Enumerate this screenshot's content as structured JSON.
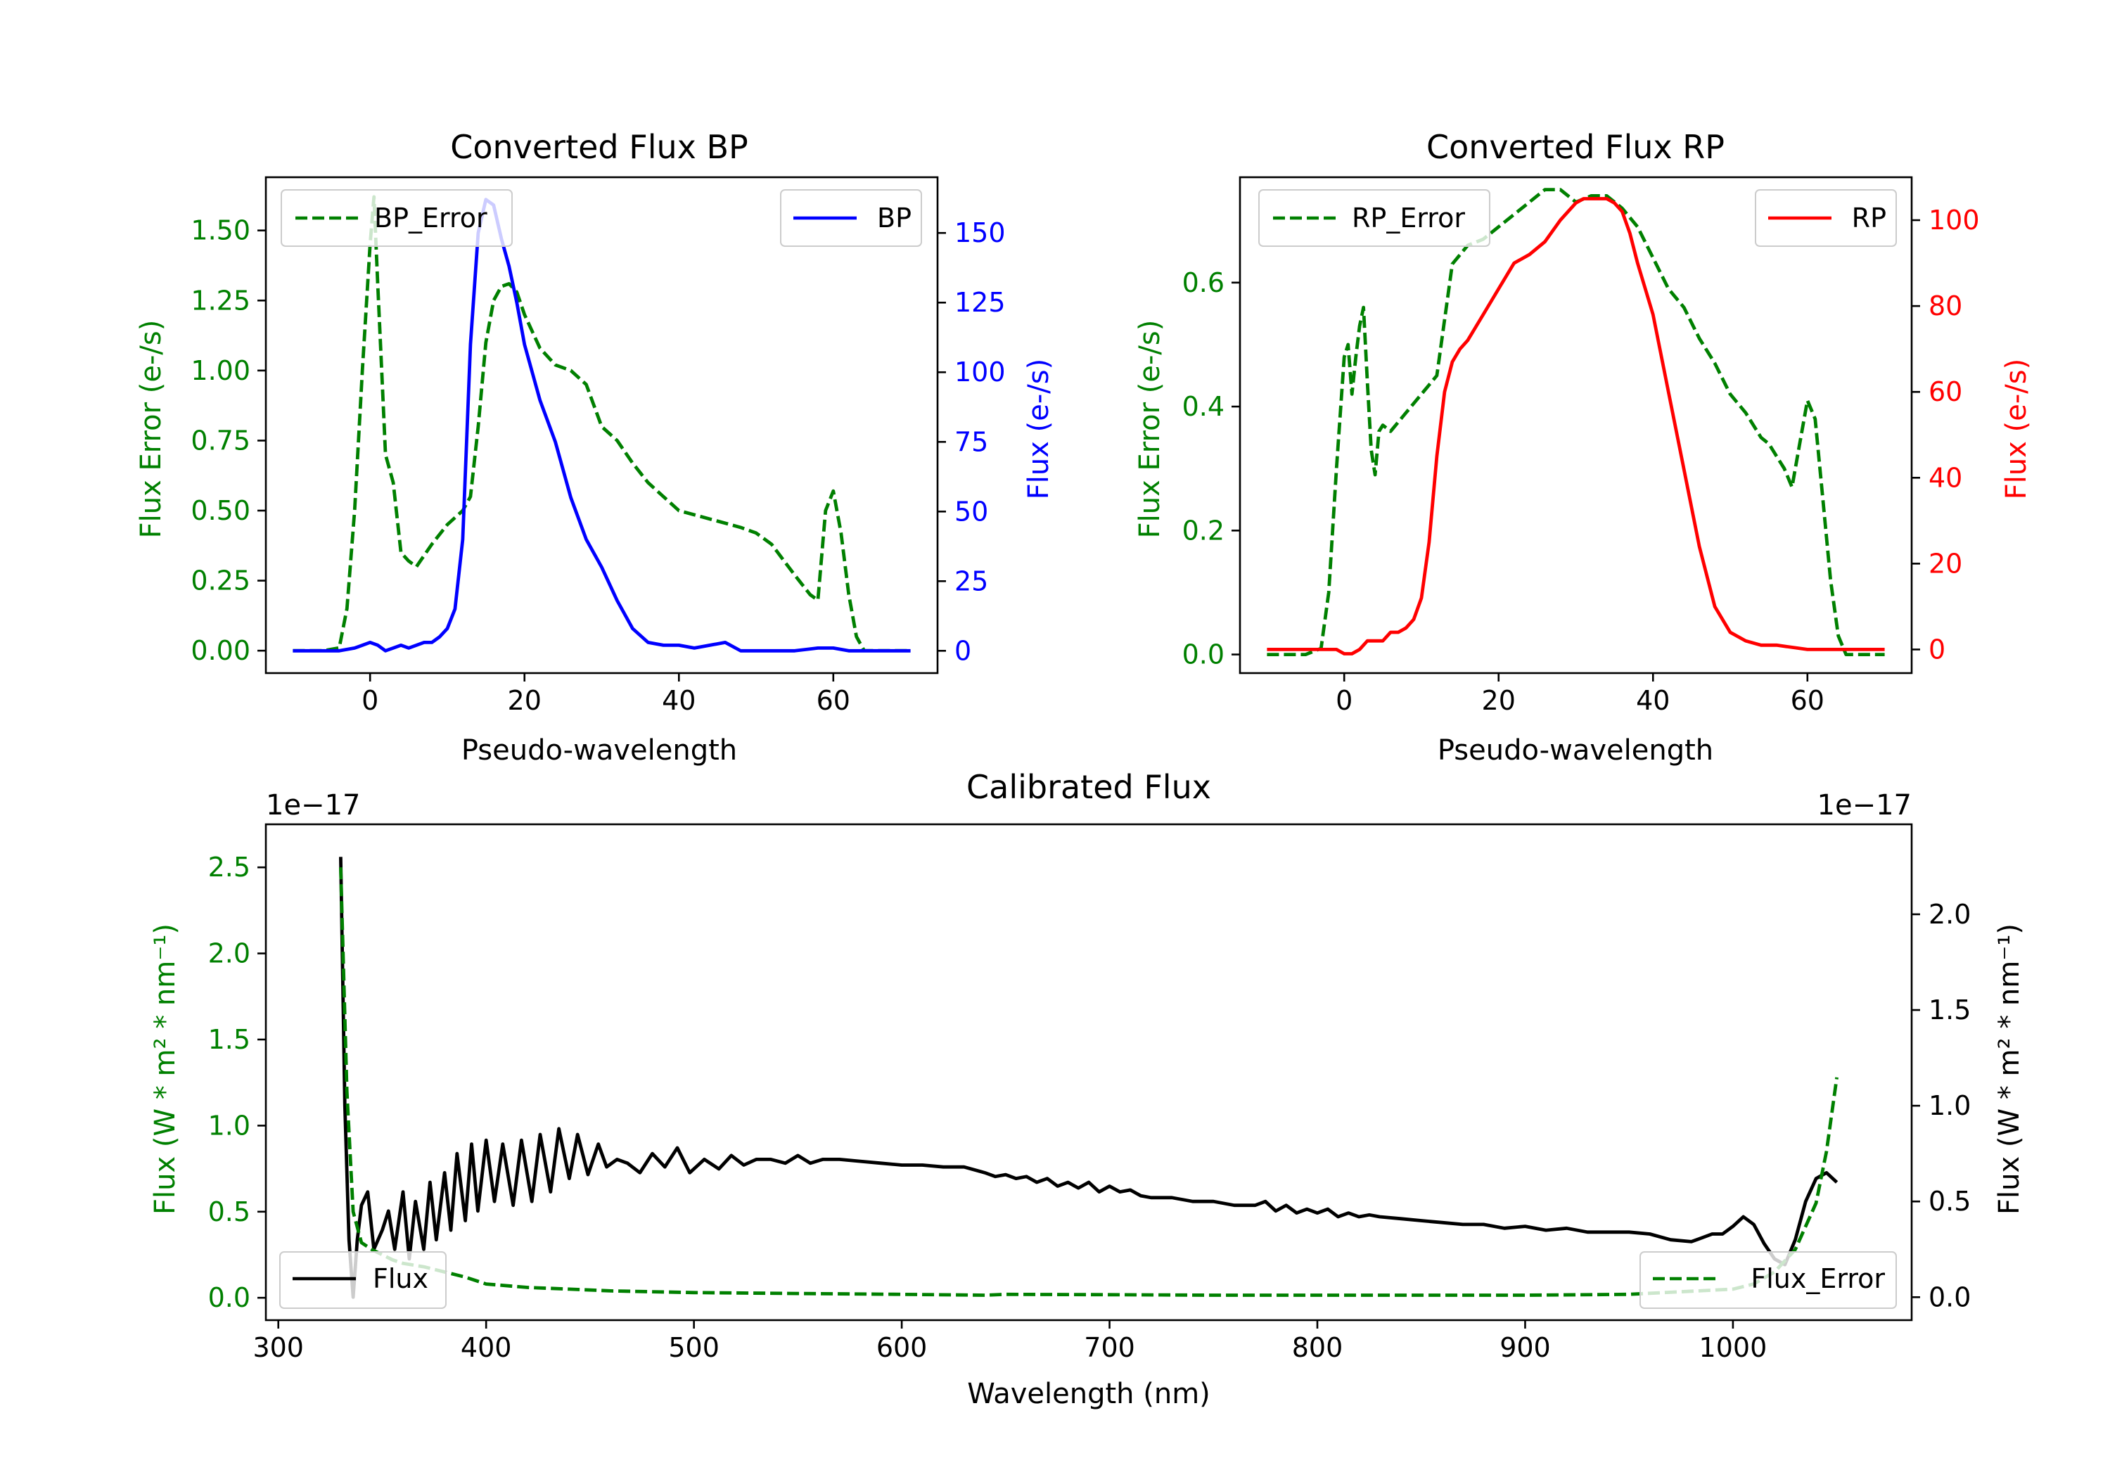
{
  "chart_data": [
    {
      "id": "bp",
      "type": "line",
      "title": "Converted Flux BP",
      "xlabel": "Pseudo-wavelength",
      "ylabel_left": "Flux Error (e-/s)",
      "ylabel_right": "Flux (e-/s)",
      "xlim": [
        -13.5,
        73.5
      ],
      "ylim_left": [
        -0.08,
        1.69
      ],
      "ylim_right": [
        -8,
        170
      ],
      "xticks": [
        0,
        20,
        40,
        60
      ],
      "xtick_labels": [
        "0",
        "20",
        "40",
        "60"
      ],
      "yticks_left": [
        0,
        0.25,
        0.5,
        0.75,
        1.0,
        1.25,
        1.5
      ],
      "ytick_labels_left": [
        "0.00",
        "0.25",
        "0.50",
        "0.75",
        "1.00",
        "1.25",
        "1.50"
      ],
      "yticks_right": [
        0,
        25,
        50,
        75,
        100,
        125,
        150
      ],
      "ytick_labels_right": [
        "0",
        "25",
        "50",
        "75",
        "100",
        "125",
        "150"
      ],
      "left_color": "#008000",
      "right_color": "#0000ff",
      "legend_left": "upper left",
      "legend_right": "upper right",
      "series": [
        {
          "name": "BP_Error",
          "axis": "left",
          "style": "dashed",
          "color": "#008000",
          "x": [
            -10,
            -6,
            -4,
            -3,
            -2,
            -1,
            0,
            0.5,
            1,
            1.5,
            2,
            3,
            4,
            5,
            6,
            8,
            10,
            12,
            13,
            14,
            15,
            16,
            17,
            18,
            19,
            20,
            22,
            24,
            26,
            28,
            30,
            32,
            34,
            36,
            38,
            40,
            44,
            48,
            50,
            52,
            55,
            57,
            58,
            59,
            60,
            61,
            62,
            63,
            64,
            65,
            66,
            68,
            70
          ],
          "y": [
            0,
            0,
            0.01,
            0.15,
            0.5,
            1.0,
            1.45,
            1.62,
            1.3,
            1.0,
            0.7,
            0.6,
            0.35,
            0.32,
            0.3,
            0.38,
            0.45,
            0.5,
            0.55,
            0.8,
            1.1,
            1.25,
            1.3,
            1.31,
            1.28,
            1.2,
            1.08,
            1.02,
            1.0,
            0.95,
            0.8,
            0.75,
            0.67,
            0.6,
            0.55,
            0.5,
            0.47,
            0.44,
            0.42,
            0.38,
            0.27,
            0.2,
            0.18,
            0.5,
            0.57,
            0.42,
            0.2,
            0.05,
            0,
            0,
            0,
            0,
            0
          ]
        },
        {
          "name": "BP",
          "axis": "right",
          "style": "solid",
          "color": "#0000ff",
          "x": [
            -10,
            -4,
            -2,
            0,
            1,
            2,
            3,
            4,
            5,
            6,
            7,
            8,
            9,
            10,
            11,
            12,
            13,
            14,
            15,
            16,
            17,
            18,
            19,
            20,
            22,
            24,
            26,
            28,
            30,
            32,
            34,
            36,
            38,
            40,
            42,
            44,
            46,
            48,
            50,
            52,
            55,
            58,
            60,
            62,
            65,
            70
          ],
          "y": [
            0,
            0,
            1,
            3,
            2,
            0,
            1,
            2,
            1,
            2,
            3,
            3,
            5,
            8,
            15,
            40,
            110,
            150,
            162,
            160,
            148,
            138,
            125,
            110,
            90,
            75,
            55,
            40,
            30,
            18,
            8,
            3,
            2,
            2,
            1,
            2,
            3,
            0,
            0,
            0,
            0,
            1,
            1,
            0,
            0,
            0
          ]
        }
      ]
    },
    {
      "id": "rp",
      "type": "line",
      "title": "Converted Flux RP",
      "xlabel": "Pseudo-wavelength",
      "ylabel_left": "Flux Error (e-/s)",
      "ylabel_right": "Flux (e-/s)",
      "xlim": [
        -13.5,
        73.5
      ],
      "ylim_left": [
        -0.03,
        0.77
      ],
      "ylim_right": [
        -5.5,
        110
      ],
      "xticks": [
        0,
        20,
        40,
        60
      ],
      "xtick_labels": [
        "0",
        "20",
        "40",
        "60"
      ],
      "yticks_left": [
        0,
        0.2,
        0.4,
        0.6
      ],
      "ytick_labels_left": [
        "0.0",
        "0.2",
        "0.4",
        "0.6"
      ],
      "yticks_right": [
        0,
        20,
        40,
        60,
        80,
        100
      ],
      "ytick_labels_right": [
        "0",
        "20",
        "40",
        "60",
        "80",
        "100"
      ],
      "left_color": "#008000",
      "right_color": "#ff0000",
      "legend_left": "upper left",
      "legend_right": "upper right",
      "series": [
        {
          "name": "RP_Error",
          "axis": "left",
          "style": "dashed",
          "color": "#008000",
          "x": [
            -10,
            -5,
            -3,
            -2,
            -1,
            0,
            0.5,
            1,
            1.5,
            2,
            2.5,
            3,
            3.5,
            4,
            4.5,
            5,
            6,
            8,
            10,
            12,
            14,
            16,
            18,
            20,
            22,
            24,
            26,
            28,
            30,
            32,
            34,
            36,
            38,
            40,
            42,
            44,
            46,
            48,
            50,
            52,
            54,
            55,
            56,
            57,
            58,
            59,
            60,
            61,
            62,
            63,
            64,
            65,
            66,
            68,
            70
          ],
          "y": [
            0,
            0,
            0.01,
            0.1,
            0.3,
            0.48,
            0.5,
            0.42,
            0.48,
            0.53,
            0.56,
            0.44,
            0.33,
            0.29,
            0.36,
            0.37,
            0.36,
            0.39,
            0.42,
            0.45,
            0.63,
            0.66,
            0.67,
            0.69,
            0.71,
            0.73,
            0.75,
            0.75,
            0.73,
            0.74,
            0.74,
            0.72,
            0.69,
            0.64,
            0.59,
            0.56,
            0.51,
            0.47,
            0.42,
            0.39,
            0.35,
            0.34,
            0.32,
            0.3,
            0.27,
            0.34,
            0.41,
            0.38,
            0.25,
            0.12,
            0.03,
            0,
            0,
            0,
            0
          ]
        },
        {
          "name": "RP",
          "axis": "right",
          "style": "solid",
          "color": "#ff0000",
          "x": [
            -10,
            -5,
            -3,
            -1,
            0,
            1,
            2,
            3,
            4,
            5,
            6,
            7,
            8,
            9,
            10,
            11,
            12,
            13,
            14,
            15,
            16,
            18,
            20,
            22,
            24,
            26,
            28,
            30,
            31,
            32,
            33,
            34,
            35,
            36,
            37,
            38,
            40,
            42,
            44,
            46,
            48,
            50,
            52,
            54,
            56,
            60,
            65,
            70
          ],
          "y": [
            0,
            0,
            0,
            0,
            -1,
            -1,
            0,
            2,
            2,
            2,
            4,
            4,
            5,
            7,
            12,
            25,
            45,
            60,
            67,
            70,
            72,
            78,
            84,
            90,
            92,
            95,
            100,
            104,
            105,
            105,
            105,
            105,
            104,
            102,
            97,
            90,
            78,
            60,
            42,
            24,
            10,
            4,
            2,
            1,
            1,
            0,
            0,
            0
          ]
        }
      ]
    },
    {
      "id": "calibrated",
      "type": "line",
      "title": "Calibrated Flux",
      "xlabel": "Wavelength (nm)",
      "ylabel_left": "Flux (W * m² * nm⁻¹)",
      "ylabel_right": "Flux (W * m² * nm⁻¹)",
      "offset_left": "1e−17",
      "offset_right": "1e−17",
      "xlim": [
        294,
        1086
      ],
      "ylim_left": [
        -0.13,
        2.75
      ],
      "ylim_right": [
        -0.12,
        2.47
      ],
      "xticks": [
        300,
        400,
        500,
        600,
        700,
        800,
        900,
        1000
      ],
      "xtick_labels": [
        "300",
        "400",
        "500",
        "600",
        "700",
        "800",
        "900",
        "1000"
      ],
      "yticks_left": [
        0,
        0.5,
        1.0,
        1.5,
        2.0,
        2.5
      ],
      "ytick_labels_left": [
        "0.0",
        "0.5",
        "1.0",
        "1.5",
        "2.0",
        "2.5"
      ],
      "yticks_right": [
        0,
        0.5,
        1.0,
        1.5,
        2.0
      ],
      "ytick_labels_right": [
        "0.0",
        "0.5",
        "1.0",
        "1.5",
        "2.0"
      ],
      "left_color": "#008000",
      "right_color": "#000000",
      "legend_left": "lower left",
      "legend_right": "lower right",
      "series": [
        {
          "name": "Flux",
          "axis": "right",
          "style": "solid",
          "color": "#000000",
          "x": [
            330,
            332,
            334,
            336,
            338,
            340,
            343,
            346,
            350,
            353,
            356,
            360,
            363,
            366,
            370,
            373,
            376,
            380,
            383,
            386,
            390,
            393,
            396,
            400,
            404,
            408,
            413,
            417,
            422,
            426,
            431,
            435,
            440,
            444,
            449,
            454,
            458,
            463,
            468,
            474,
            480,
            486,
            492,
            498,
            505,
            512,
            518,
            524,
            530,
            537,
            544,
            550,
            556,
            562,
            570,
            580,
            590,
            600,
            610,
            620,
            630,
            640,
            645,
            650,
            655,
            660,
            665,
            670,
            675,
            680,
            685,
            690,
            695,
            700,
            705,
            710,
            715,
            720,
            730,
            740,
            750,
            760,
            770,
            775,
            780,
            785,
            790,
            795,
            800,
            805,
            810,
            815,
            820,
            825,
            830,
            840,
            850,
            860,
            870,
            880,
            890,
            900,
            910,
            920,
            930,
            940,
            950,
            960,
            970,
            980,
            985,
            990,
            995,
            1000,
            1005,
            1010,
            1015,
            1020,
            1025,
            1030,
            1035,
            1040,
            1045,
            1050
          ],
          "y": [
            2.3,
            1.0,
            0.3,
            0.0,
            0.3,
            0.48,
            0.55,
            0.25,
            0.35,
            0.45,
            0.25,
            0.55,
            0.2,
            0.5,
            0.25,
            0.6,
            0.3,
            0.65,
            0.35,
            0.75,
            0.4,
            0.8,
            0.45,
            0.82,
            0.5,
            0.8,
            0.48,
            0.82,
            0.5,
            0.85,
            0.55,
            0.88,
            0.62,
            0.85,
            0.64,
            0.8,
            0.68,
            0.72,
            0.7,
            0.65,
            0.75,
            0.68,
            0.78,
            0.65,
            0.72,
            0.67,
            0.74,
            0.69,
            0.72,
            0.72,
            0.7,
            0.74,
            0.7,
            0.72,
            0.72,
            0.71,
            0.7,
            0.69,
            0.69,
            0.68,
            0.68,
            0.65,
            0.63,
            0.64,
            0.62,
            0.63,
            0.6,
            0.62,
            0.58,
            0.6,
            0.57,
            0.6,
            0.55,
            0.58,
            0.55,
            0.56,
            0.53,
            0.52,
            0.52,
            0.5,
            0.5,
            0.48,
            0.48,
            0.5,
            0.45,
            0.48,
            0.44,
            0.46,
            0.44,
            0.46,
            0.42,
            0.44,
            0.42,
            0.43,
            0.42,
            0.41,
            0.4,
            0.39,
            0.38,
            0.38,
            0.36,
            0.37,
            0.35,
            0.36,
            0.34,
            0.34,
            0.34,
            0.33,
            0.3,
            0.29,
            0.31,
            0.33,
            0.33,
            0.37,
            0.42,
            0.38,
            0.28,
            0.2,
            0.17,
            0.3,
            0.5,
            0.62,
            0.65,
            0.6
          ]
        },
        {
          "name": "Flux_Error",
          "axis": "left",
          "style": "dashed",
          "color": "#008000",
          "x": [
            330,
            333,
            336,
            340,
            345,
            350,
            355,
            360,
            370,
            380,
            390,
            400,
            420,
            440,
            460,
            480,
            500,
            550,
            600,
            640,
            650,
            700,
            750,
            800,
            850,
            900,
            950,
            1000,
            1010,
            1020,
            1030,
            1040,
            1045,
            1050
          ],
          "y": [
            2.5,
            1.2,
            0.5,
            0.32,
            0.28,
            0.25,
            0.22,
            0.2,
            0.18,
            0.15,
            0.12,
            0.08,
            0.06,
            0.05,
            0.04,
            0.035,
            0.03,
            0.025,
            0.02,
            0.015,
            0.02,
            0.018,
            0.015,
            0.015,
            0.015,
            0.015,
            0.02,
            0.05,
            0.08,
            0.15,
            0.28,
            0.55,
            0.85,
            1.28
          ]
        }
      ]
    }
  ]
}
